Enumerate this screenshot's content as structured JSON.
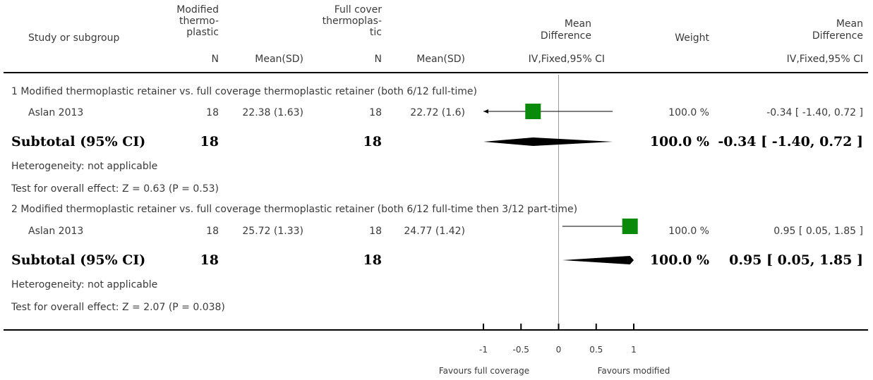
{
  "header": {
    "study": "Study or subgroup",
    "group1_lines": [
      "Modified",
      "thermo-",
      "plastic"
    ],
    "group2_lines": [
      "Full cover",
      "thermoplas-",
      "tic"
    ],
    "md_lines": [
      "Mean",
      "Difference"
    ],
    "weight": "Weight",
    "md_right_lines": [
      "Mean",
      "Difference"
    ],
    "n1": "N",
    "mean1": "Mean(SD)",
    "n2": "N",
    "mean2": "Mean(SD)",
    "method": "IV,Fixed,95% CI",
    "method_right": "IV,Fixed,95% CI"
  },
  "subgroups": [
    {
      "title": "1 Modified thermoplastic retainer vs. full coverage thermoplastic retainer (both 6/12 full-time)",
      "studies": [
        {
          "name": "Aslan 2013",
          "n1": "18",
          "mean_sd1": "22.38 (1.63)",
          "n2": "18",
          "mean_sd2": "22.72 (1.6)",
          "weight": "100.0 %",
          "ci_text": "-0.34 [ -1.40, 0.72 ]"
        }
      ],
      "subtotal": {
        "label": "Subtotal (95% CI)",
        "n1": "18",
        "n2": "18",
        "weight": "100.0 %",
        "ci_text": "-0.34 [ -1.40, 0.72 ]"
      },
      "heterogeneity": "Heterogeneity: not applicable",
      "overall": "Test for overall effect: Z = 0.63 (P = 0.53)"
    },
    {
      "title": "2 Modified thermoplastic retainer vs. full coverage thermoplastic retainer (both 6/12 full-time then 3/12 part-time)",
      "studies": [
        {
          "name": "Aslan 2013",
          "n1": "18",
          "mean_sd1": "25.72 (1.33)",
          "n2": "18",
          "mean_sd2": "24.77 (1.42)",
          "weight": "100.0 %",
          "ci_text": "0.95 [ 0.05, 1.85 ]"
        }
      ],
      "subtotal": {
        "label": "Subtotal (95% CI)",
        "n1": "18",
        "n2": "18",
        "weight": "100.0 %",
        "ci_text": "0.95 [ 0.05, 1.85 ]"
      },
      "heterogeneity": "Heterogeneity: not applicable",
      "overall": "Test for overall effect: Z = 2.07 (P = 0.038)"
    }
  ],
  "footer": {
    "favours_left": "Favours full coverage",
    "favours_right": "Favours modified"
  },
  "colors": {
    "square": "#0a8a0a",
    "diamond": "#000000",
    "text": "#3a3a3a",
    "axis": "#000000",
    "zero_line": "#999999"
  },
  "chart_data": {
    "type": "forest",
    "xlim": [
      -1,
      1
    ],
    "xticks": [
      -1,
      -0.5,
      0,
      0.5,
      1
    ],
    "xtick_labels": [
      "-1",
      "-0.5",
      "0",
      "0.5",
      "1"
    ],
    "studies": [
      {
        "subgroup": 1,
        "name": "Aslan 2013",
        "md": -0.34,
        "lo": -1.4,
        "hi": 0.72,
        "weight": 100.0,
        "arrow_left": true,
        "arrow_right": false
      },
      {
        "subgroup": 2,
        "name": "Aslan 2013",
        "md": 0.95,
        "lo": 0.05,
        "hi": 1.85,
        "weight": 100.0,
        "arrow_left": false,
        "arrow_right": true
      }
    ],
    "subtotals": [
      {
        "subgroup": 1,
        "md": -0.34,
        "lo": -1.4,
        "hi": 0.72
      },
      {
        "subgroup": 2,
        "md": 0.95,
        "lo": 0.05,
        "hi": 1.85
      }
    ]
  }
}
